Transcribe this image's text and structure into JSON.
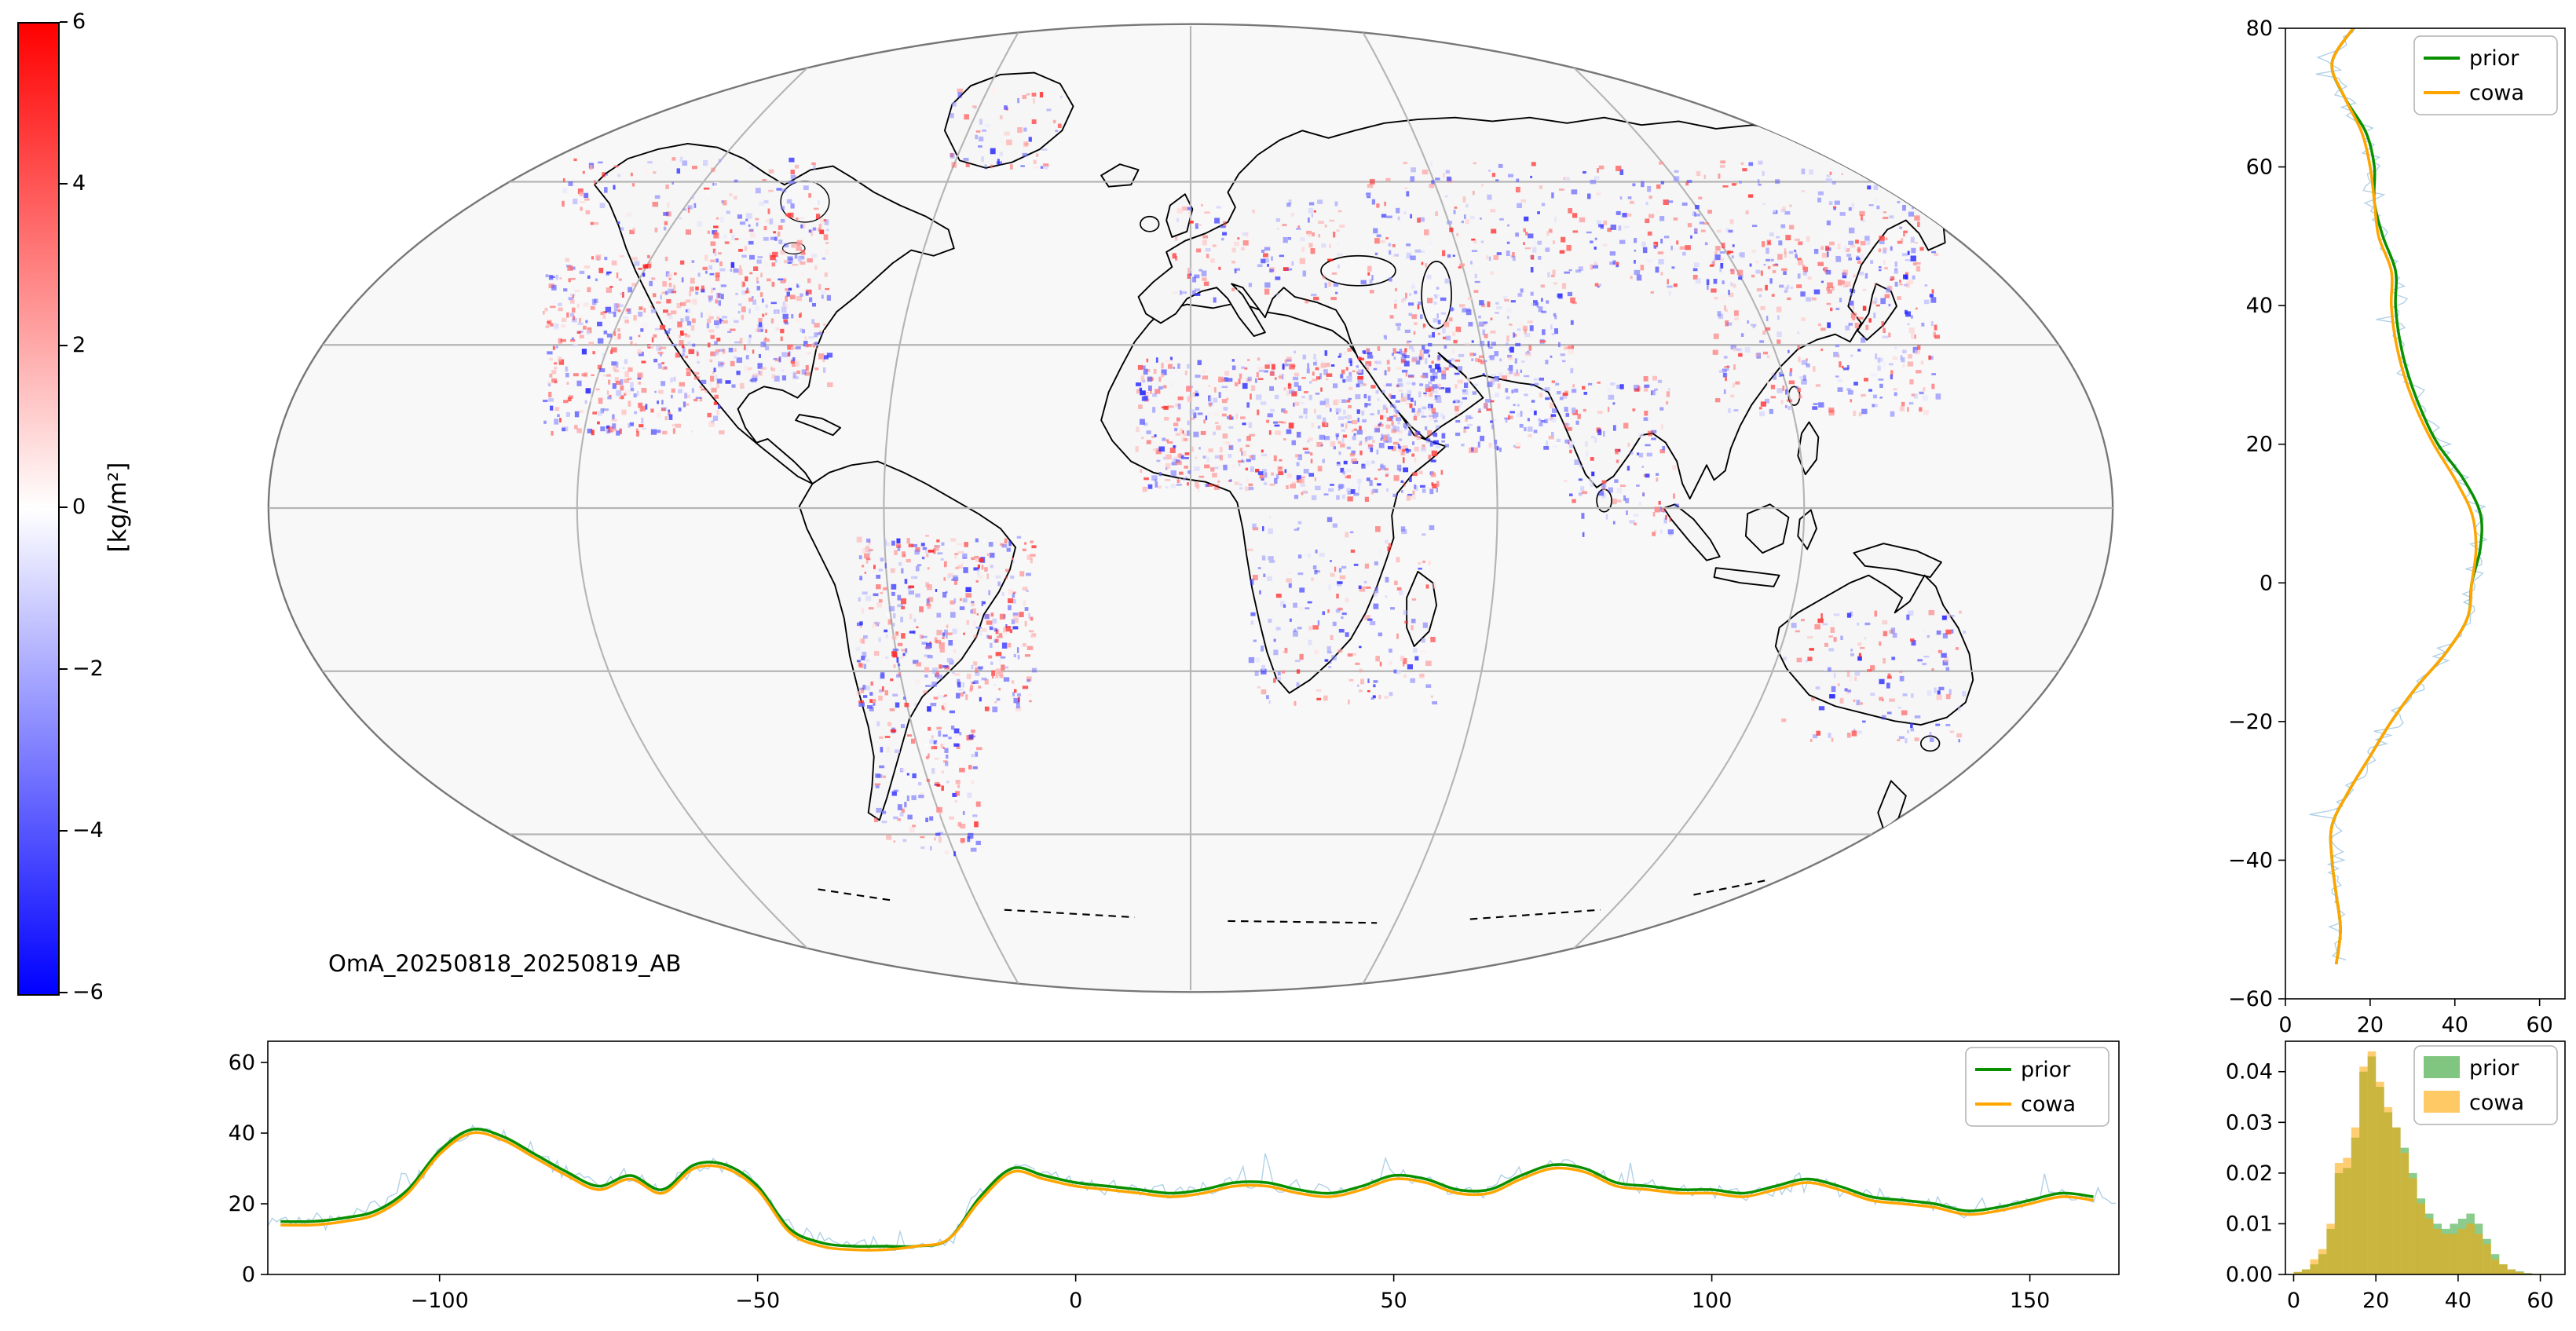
{
  "colorbar": {
    "label": "[kg/m²]",
    "ticks": [
      6,
      4,
      2,
      0,
      -2,
      -4,
      -6
    ],
    "vmin": -6,
    "vmax": 6,
    "cmap": [
      "#0000ff",
      "#ffffff",
      "#ff0000"
    ]
  },
  "map": {
    "annotation": "OmA_20250818_20250819_AB",
    "projection": "robinson-like",
    "graticule_lats": [
      -60,
      -30,
      0,
      30,
      60
    ],
    "graticule_lons": [
      -120,
      -60,
      0,
      60,
      120
    ],
    "noise_regions": [
      [
        152,
        130,
        95,
        95,
        430,
        0.6
      ],
      [
        240,
        110,
        65,
        90,
        300,
        0.5
      ],
      [
        160,
        78,
        140,
        40,
        110,
        0.5
      ],
      [
        320,
        280,
        95,
        95,
        430,
        0.55
      ],
      [
        330,
        380,
        55,
        70,
        130,
        0.5
      ],
      [
        470,
        185,
        85,
        70,
        330,
        0.6
      ],
      [
        555,
        180,
        80,
        80,
        380,
        0.35
      ],
      [
        530,
        270,
        100,
        100,
        200,
        0.45
      ],
      [
        490,
        100,
        90,
        55,
        130,
        0.5
      ],
      [
        600,
        150,
        105,
        85,
        380,
        0.3
      ],
      [
        700,
        195,
        60,
        85,
        130,
        0.45
      ],
      [
        780,
        120,
        120,
        95,
        320,
        0.5
      ],
      [
        590,
        80,
        300,
        70,
        450,
        0.45
      ],
      [
        816,
        320,
        100,
        70,
        140,
        0.4
      ],
      [
        370,
        40,
        60,
        44,
        60,
        0.45
      ]
    ]
  },
  "legend": [
    "prior",
    "cowa"
  ],
  "colors": {
    "prior": "#089000",
    "cowa": "#ffa500",
    "obs": "#a9cce3",
    "hist_prior": "#2ca02c",
    "hist_cowa": "#ffa500"
  },
  "chart_data": [
    {
      "id": "zonal_mean_profile",
      "type": "line",
      "orientation": "value_vs_latitude",
      "xlim": [
        0,
        66
      ],
      "ylim": [
        -60,
        80
      ],
      "xticks": [
        0,
        20,
        40,
        60
      ],
      "yticks": [
        -60,
        -40,
        -20,
        0,
        20,
        40,
        60,
        80
      ],
      "legend_position": "upper right",
      "latitudes": [
        80,
        75,
        70,
        65,
        60,
        55,
        50,
        45,
        40,
        35,
        30,
        25,
        20,
        15,
        10,
        5,
        0,
        -5,
        -10,
        -15,
        -20,
        -25,
        -30,
        -35,
        -40,
        -45,
        -50,
        -55
      ],
      "series": [
        {
          "name": "prior",
          "color": "#089000",
          "values": [
            16,
            11,
            14,
            19,
            21,
            21,
            23,
            26,
            26,
            27,
            29,
            32,
            36,
            42,
            46,
            46,
            44,
            43,
            38,
            31,
            25,
            20,
            15,
            11,
            11,
            12,
            13,
            12
          ]
        },
        {
          "name": "cowa",
          "color": "#ffa500",
          "values": [
            16,
            11,
            14,
            18,
            20,
            21,
            22,
            25,
            25,
            26,
            28,
            31,
            35,
            40,
            44,
            45,
            44,
            43,
            38,
            31,
            25,
            20,
            15,
            11,
            11,
            12,
            13,
            12
          ]
        },
        {
          "name": "observations",
          "color": "#a9cce3",
          "style": "thin-noisy"
        }
      ]
    },
    {
      "id": "meridional_mean_profile",
      "type": "line",
      "orientation": "value_vs_longitude",
      "xlim": [
        -127,
        164
      ],
      "ylim": [
        0,
        66
      ],
      "xticks": [
        -100,
        -50,
        0,
        50,
        100,
        150
      ],
      "yticks": [
        0,
        20,
        40,
        60
      ],
      "legend_position": "upper right",
      "longitudes": [
        -125,
        -120,
        -115,
        -110,
        -105,
        -100,
        -95,
        -90,
        -85,
        -80,
        -75,
        -70,
        -65,
        -60,
        -55,
        -50,
        -45,
        -40,
        -35,
        -30,
        -25,
        -20,
        -15,
        -10,
        -5,
        0,
        5,
        10,
        15,
        20,
        25,
        30,
        35,
        40,
        45,
        50,
        55,
        60,
        65,
        70,
        75,
        80,
        85,
        90,
        95,
        100,
        105,
        110,
        115,
        120,
        125,
        130,
        135,
        140,
        145,
        150,
        155,
        160
      ],
      "series": [
        {
          "name": "prior",
          "color": "#089000",
          "values": [
            15,
            15,
            16,
            18,
            24,
            35,
            41,
            39,
            34,
            29,
            25,
            28,
            24,
            31,
            31,
            25,
            13,
            9,
            8,
            8,
            8,
            10,
            22,
            30,
            28,
            26,
            25,
            24,
            23,
            24,
            26,
            26,
            24,
            23,
            25,
            28,
            27,
            24,
            24,
            28,
            31,
            30,
            26,
            25,
            24,
            24,
            23,
            25,
            27,
            25,
            22,
            21,
            20,
            18,
            19,
            21,
            23,
            22
          ]
        },
        {
          "name": "cowa",
          "color": "#ffa500",
          "values": [
            14,
            14,
            15,
            17,
            23,
            34,
            40,
            38,
            33,
            28,
            24,
            27,
            23,
            30,
            30,
            24,
            12,
            8,
            7,
            7,
            8,
            10,
            21,
            29,
            27,
            25,
            24,
            23,
            22,
            23,
            25,
            25,
            23,
            22,
            24,
            27,
            26,
            23,
            23,
            27,
            30,
            29,
            25,
            24,
            23,
            23,
            22,
            24,
            26,
            24,
            21,
            20,
            19,
            17,
            18,
            20,
            22,
            21
          ]
        },
        {
          "name": "observations",
          "color": "#a9cce3",
          "style": "thin-noisy"
        }
      ]
    },
    {
      "id": "value_histogram",
      "type": "histogram",
      "xlim": [
        -2,
        66
      ],
      "ylim": [
        0,
        0.046
      ],
      "xticks": [
        0,
        20,
        40,
        60
      ],
      "yticks": [
        0,
        0.01,
        0.02,
        0.03,
        0.04
      ],
      "legend_position": "upper right",
      "bin_start": 0,
      "bin_width": 2,
      "series": [
        {
          "name": "prior",
          "color": "#2ca02c",
          "opacity": 0.55,
          "densities": [
            0.0005,
            0.001,
            0.002,
            0.004,
            0.009,
            0.02,
            0.021,
            0.027,
            0.04,
            0.043,
            0.037,
            0.032,
            0.029,
            0.025,
            0.02,
            0.015,
            0.012,
            0.01,
            0.009,
            0.01,
            0.011,
            0.012,
            0.01,
            0.007,
            0.004,
            0.002,
            0.001,
            0.0006,
            0.0003,
            0.0001
          ]
        },
        {
          "name": "cowa",
          "color": "#ffa500",
          "opacity": 0.55,
          "densities": [
            0.0005,
            0.001,
            0.003,
            0.005,
            0.01,
            0.022,
            0.023,
            0.029,
            0.041,
            0.044,
            0.038,
            0.033,
            0.029,
            0.024,
            0.019,
            0.014,
            0.011,
            0.009,
            0.008,
            0.008,
            0.009,
            0.01,
            0.008,
            0.006,
            0.003,
            0.002,
            0.001,
            0.0005,
            0.0002,
            0.0001
          ]
        }
      ]
    }
  ]
}
